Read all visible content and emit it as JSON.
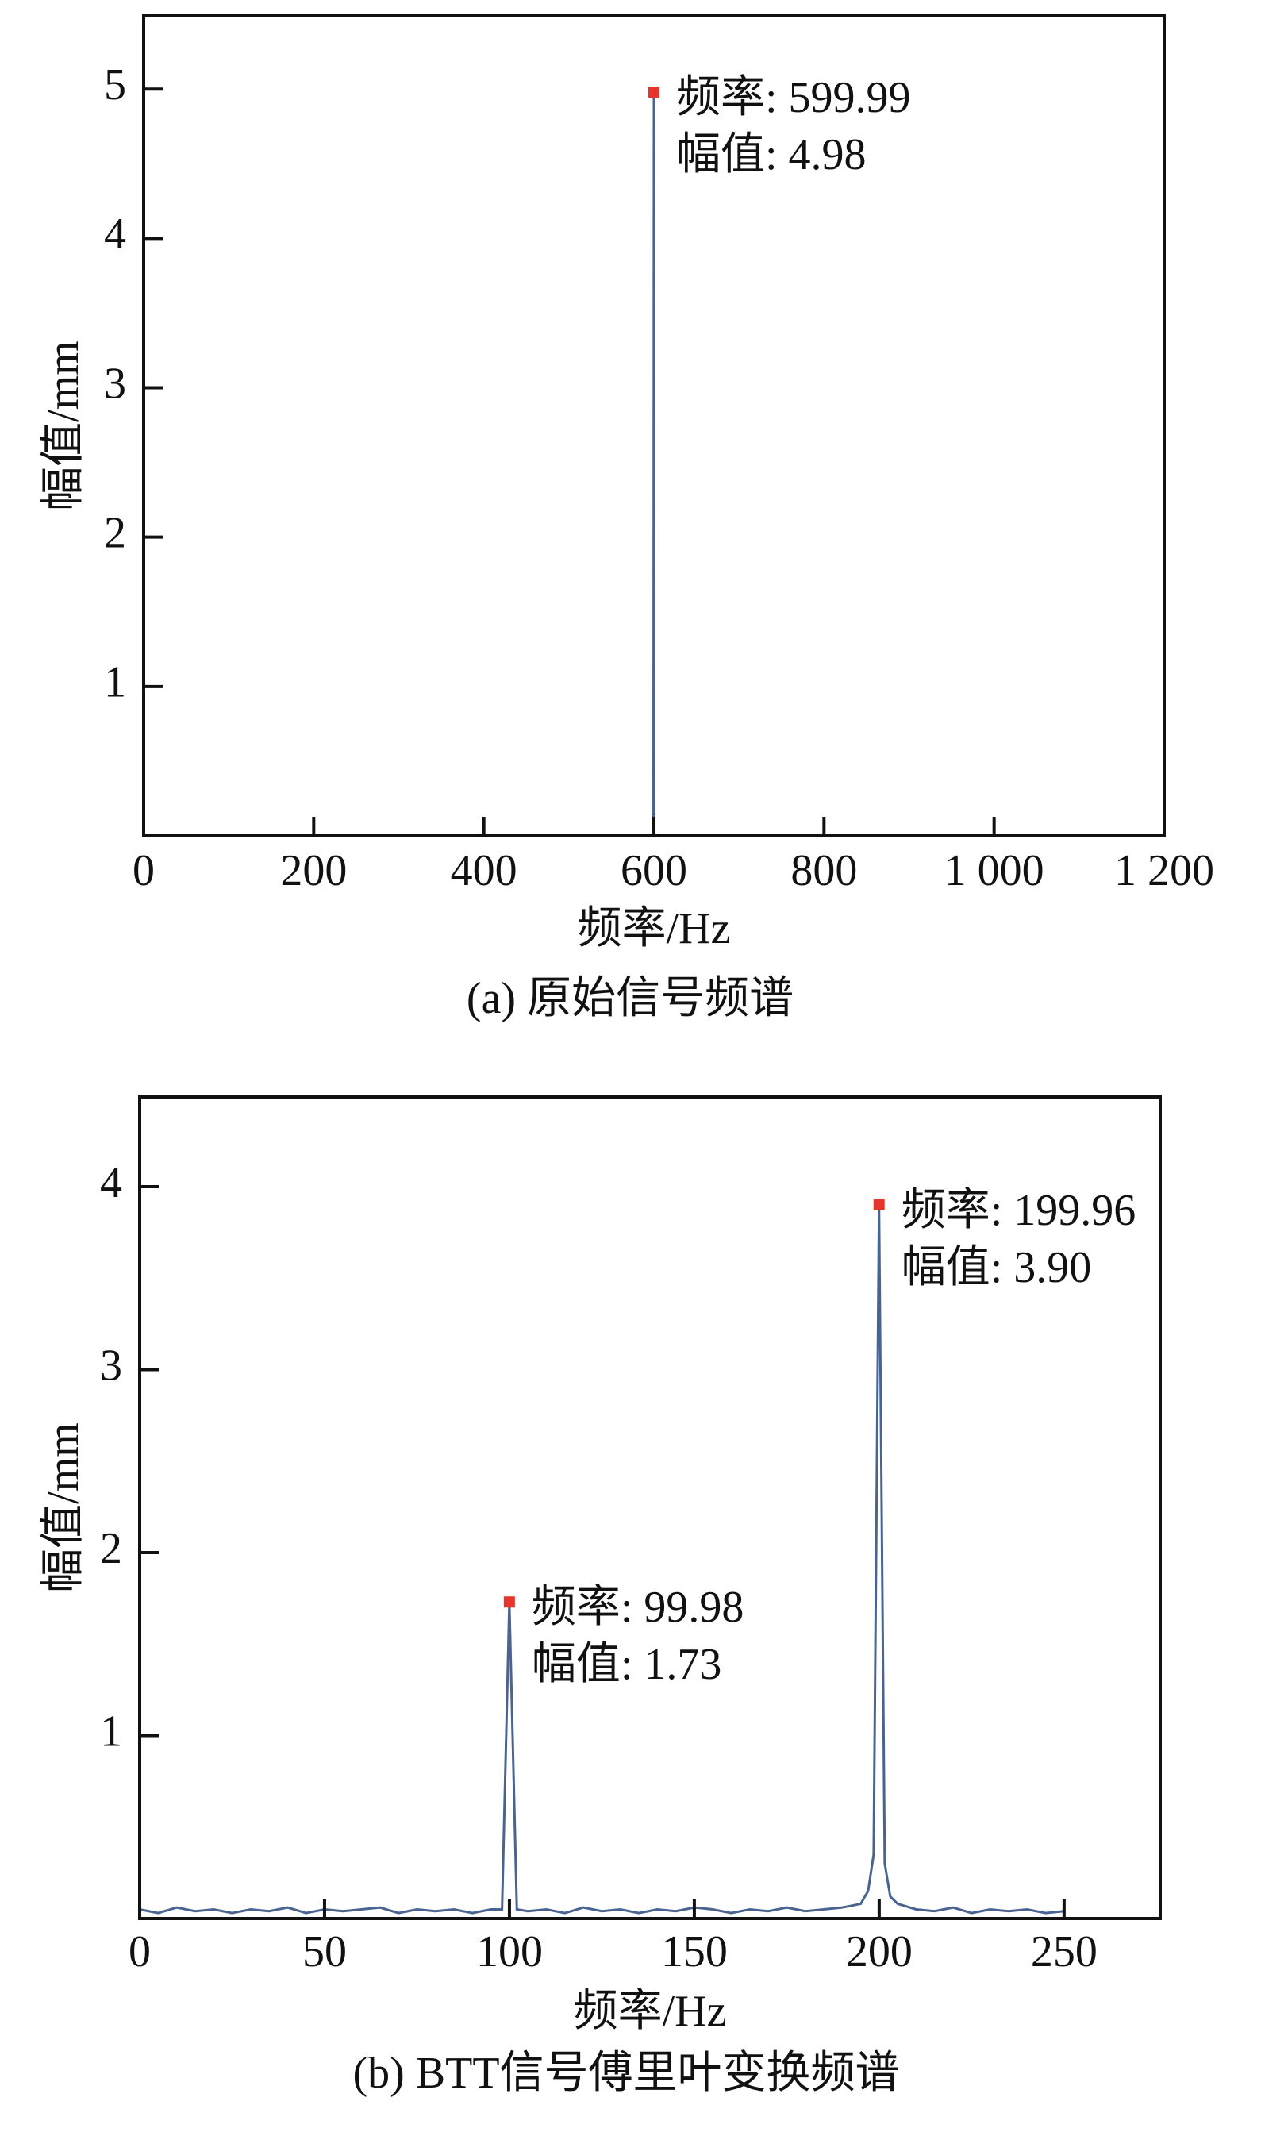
{
  "chart_data": [
    {
      "type": "line",
      "caption": "(a) 原始信号频谱",
      "xlabel": "频率/Hz",
      "ylabel": "幅值/mm",
      "xlim": [
        0,
        1200
      ],
      "ylim": [
        0,
        5.49
      ],
      "xticks": [
        0,
        200,
        400,
        600,
        800,
        {
          "value": 1000,
          "label": "1 000"
        },
        {
          "value": 1200,
          "label": "1 200"
        }
      ],
      "yticks": [
        1,
        2,
        3,
        4,
        5
      ],
      "series": [
        {
          "color": "#4a6491",
          "x": [
            0,
            599.5,
            599.99,
            600.5,
            1200
          ],
          "values": [
            0,
            0,
            4.98,
            0,
            0
          ]
        }
      ],
      "annotations": [
        {
          "x": 599.99,
          "y": 4.98,
          "color": "#e8352b",
          "lines": [
            "频率: 599.99",
            "幅值: 4.98"
          ]
        }
      ]
    },
    {
      "type": "line",
      "caption": "(b) BTT信号傅里叶变换频谱",
      "xlabel": "频率/Hz",
      "ylabel": "幅值/mm",
      "xlim": [
        0,
        276
      ],
      "ylim": [
        0,
        4.49
      ],
      "xticks": [
        0,
        50,
        100,
        150,
        200,
        250
      ],
      "yticks": [
        1,
        2,
        3,
        4
      ],
      "series": [
        {
          "color": "#4a6491",
          "x": [
            0,
            5,
            10,
            15,
            20,
            25,
            30,
            35,
            40,
            45,
            50,
            55,
            60,
            65,
            70,
            75,
            80,
            85,
            90,
            95,
            98,
            99.98,
            102,
            105,
            110,
            115,
            120,
            125,
            130,
            135,
            140,
            145,
            150,
            155,
            160,
            165,
            170,
            175,
            180,
            185,
            190,
            195,
            197,
            198.5,
            199.96,
            201.5,
            203,
            205,
            210,
            215,
            220,
            225,
            230,
            235,
            240,
            245,
            250
          ],
          "values": [
            0.05,
            0.03,
            0.06,
            0.04,
            0.05,
            0.03,
            0.05,
            0.04,
            0.06,
            0.03,
            0.05,
            0.04,
            0.05,
            0.06,
            0.03,
            0.05,
            0.04,
            0.05,
            0.03,
            0.05,
            0.05,
            1.73,
            0.05,
            0.04,
            0.05,
            0.03,
            0.06,
            0.04,
            0.05,
            0.03,
            0.05,
            0.04,
            0.06,
            0.05,
            0.03,
            0.05,
            0.04,
            0.06,
            0.04,
            0.05,
            0.06,
            0.08,
            0.15,
            0.35,
            3.9,
            0.3,
            0.12,
            0.08,
            0.05,
            0.04,
            0.06,
            0.03,
            0.05,
            0.04,
            0.05,
            0.03,
            0.04
          ]
        }
      ],
      "annotations": [
        {
          "x": 199.96,
          "y": 3.9,
          "color": "#e8352b",
          "lines": [
            "频率: 199.96",
            "幅值: 3.90"
          ]
        },
        {
          "x": 99.98,
          "y": 1.73,
          "color": "#e8352b",
          "lines": [
            "频率: 99.98",
            "幅值: 1.73"
          ]
        }
      ]
    }
  ]
}
